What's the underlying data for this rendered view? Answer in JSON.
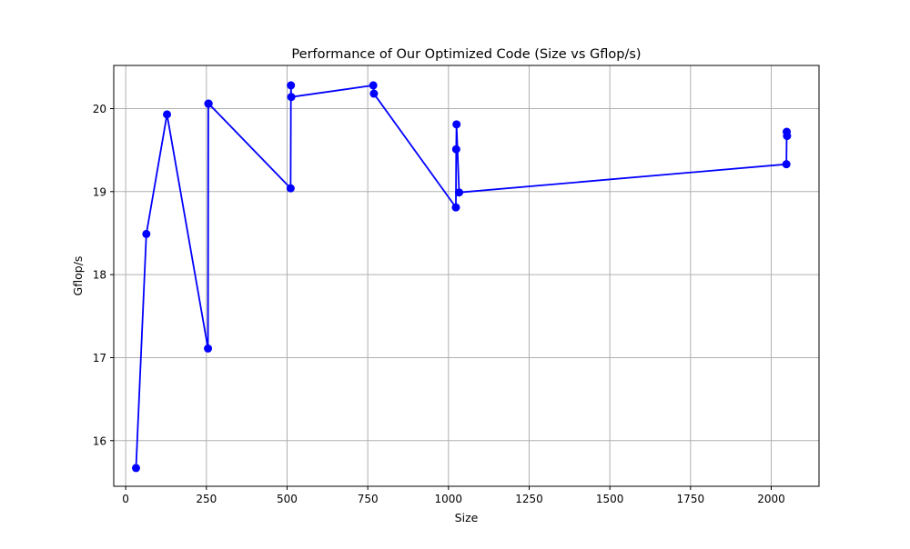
{
  "chart_data": {
    "type": "line",
    "title": "Performance of Our Optimized Code (Size vs Gflop/s)",
    "xlabel": "Size",
    "ylabel": "Gflop/s",
    "xlim": [
      -37,
      2148
    ],
    "ylim": [
      15.45,
      20.52
    ],
    "xticks": [
      0,
      250,
      500,
      750,
      1000,
      1250,
      1500,
      1750,
      2000
    ],
    "yticks": [
      16,
      17,
      18,
      19,
      20
    ],
    "grid": true,
    "legend": "none",
    "series": [
      {
        "color": "#0000ff",
        "marker": "circle",
        "x": [
          32,
          64,
          128,
          255,
          256,
          257,
          511,
          512,
          513,
          767,
          769,
          1023,
          1024,
          1025,
          1033,
          2047,
          2048,
          2049
        ],
        "y": [
          15.67,
          18.49,
          19.93,
          17.11,
          20.06,
          20.06,
          19.04,
          20.28,
          20.14,
          20.28,
          20.18,
          18.81,
          19.51,
          19.81,
          18.99,
          19.33,
          19.72,
          19.67
        ]
      }
    ]
  }
}
